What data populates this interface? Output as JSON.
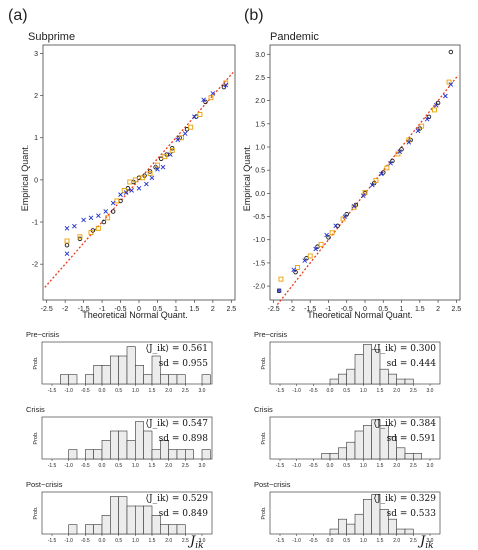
{
  "panels": [
    {
      "panel_label": "(a)",
      "title": "Subprime",
      "qq": {
        "type": "scatter",
        "xlabel": "Theoretical Normal Quant.",
        "ylabel": "Empirical Quant.",
        "xlim": [
          -2.6,
          2.6
        ],
        "ylim": [
          -2.85,
          3.2
        ],
        "xticks": [
          "-2.5",
          "-2",
          "-1.5",
          "-1",
          "-0.5",
          "0",
          "0.5",
          "1",
          "1.5",
          "2",
          "2.5"
        ],
        "yticks": [
          "-2",
          "-1",
          "0",
          "1",
          "2",
          "3"
        ],
        "reference_line": [
          [
            -2.55,
            -2.55
          ],
          [
            2.55,
            2.55
          ]
        ],
        "series": [
          {
            "marker": "circle-open",
            "color": "#1a1a1a",
            "points": [
              [
                -1.95,
                -1.55
              ],
              [
                -1.6,
                -1.4
              ],
              [
                -1.25,
                -1.2
              ],
              [
                -0.95,
                -1.0
              ],
              [
                -0.7,
                -0.75
              ],
              [
                -0.5,
                -0.5
              ],
              [
                -0.3,
                -0.2
              ],
              [
                -0.15,
                -0.05
              ],
              [
                0.0,
                0.05
              ],
              [
                0.15,
                0.1
              ],
              [
                0.3,
                0.2
              ],
              [
                0.45,
                0.3
              ],
              [
                0.6,
                0.5
              ],
              [
                0.75,
                0.6
              ],
              [
                0.9,
                0.75
              ],
              [
                1.1,
                1.0
              ],
              [
                1.3,
                1.2
              ],
              [
                1.55,
                1.5
              ],
              [
                1.8,
                1.85
              ],
              [
                2.3,
                2.2
              ]
            ]
          },
          {
            "marker": "square-open",
            "color": "#e8a000",
            "points": [
              [
                -1.95,
                -1.45
              ],
              [
                -1.6,
                -1.35
              ],
              [
                -1.3,
                -1.25
              ],
              [
                -1.1,
                -1.15
              ],
              [
                -0.85,
                -0.9
              ],
              [
                -0.6,
                -0.5
              ],
              [
                -0.4,
                -0.25
              ],
              [
                -0.25,
                -0.05
              ],
              [
                -0.1,
                0.0
              ],
              [
                0.1,
                0.05
              ],
              [
                0.3,
                0.15
              ],
              [
                0.5,
                0.35
              ],
              [
                0.7,
                0.55
              ],
              [
                0.9,
                0.7
              ],
              [
                1.15,
                1.0
              ],
              [
                1.4,
                1.25
              ],
              [
                1.65,
                1.55
              ],
              [
                1.95,
                1.95
              ],
              [
                2.35,
                2.3
              ]
            ]
          },
          {
            "marker": "cross",
            "color": "#1f2fd0",
            "points": [
              [
                -1.95,
                -1.15
              ],
              [
                -1.75,
                -1.1
              ],
              [
                -1.5,
                -0.95
              ],
              [
                -1.3,
                -0.9
              ],
              [
                -1.1,
                -0.85
              ],
              [
                -0.9,
                -0.75
              ],
              [
                -0.7,
                -0.55
              ],
              [
                -0.5,
                -0.35
              ],
              [
                -0.35,
                -0.3
              ],
              [
                -0.2,
                -0.25
              ],
              [
                0.0,
                -0.2
              ],
              [
                0.2,
                -0.1
              ],
              [
                0.35,
                0.05
              ],
              [
                0.5,
                0.25
              ],
              [
                0.65,
                0.3
              ],
              [
                0.85,
                0.6
              ],
              [
                1.05,
                0.95
              ],
              [
                1.25,
                1.1
              ],
              [
                1.5,
                1.5
              ],
              [
                1.75,
                1.9
              ],
              [
                2.0,
                2.05
              ],
              [
                2.35,
                2.25
              ],
              [
                -1.95,
                -1.75
              ]
            ]
          }
        ]
      },
      "histograms": [
        {
          "label": "Pre−crisis",
          "mean_text": "⟨J_ik⟩ = 0.561",
          "sd_text": "sd = 0.955",
          "bins_lo": -1.5,
          "bin_width": 0.25,
          "counts": [
            0,
            1,
            1,
            0,
            1,
            2,
            2,
            3,
            3,
            4,
            2,
            1,
            3,
            1,
            1,
            1,
            0,
            0,
            1
          ],
          "ylim": [
            0,
            4.5
          ]
        },
        {
          "label": "Crisis",
          "mean_text": "⟨J_ik⟩ = 0.547",
          "sd_text": "sd = 0.898",
          "bins_lo": -1.5,
          "bin_width": 0.25,
          "counts": [
            0,
            0,
            1,
            0,
            1,
            1,
            2,
            3,
            3,
            2,
            4,
            3,
            1,
            2,
            1,
            1,
            1,
            0,
            1
          ],
          "ylim": [
            0,
            4.5
          ]
        },
        {
          "label": "Post−crisis",
          "mean_text": "⟨J_ik⟩ = 0.529",
          "sd_text": "sd = 0.849",
          "bins_lo": -1.5,
          "bin_width": 0.25,
          "counts": [
            0,
            0,
            1,
            0,
            1,
            1,
            2,
            4,
            4,
            3,
            3,
            3,
            2,
            1,
            1,
            1,
            0,
            0,
            0
          ],
          "ylim": [
            0,
            4.5
          ]
        }
      ]
    },
    {
      "panel_label": "(b)",
      "title": "Pandemic",
      "qq": {
        "type": "scatter",
        "xlabel": "Theoretical Normal Quant.",
        "ylabel": "Empirical Quant.",
        "xlim": [
          -2.6,
          2.6
        ],
        "ylim": [
          -2.3,
          3.2
        ],
        "xticks": [
          "-2.5",
          "-2",
          "-1.5",
          "-1",
          "-0.5",
          "0",
          "0.5",
          "1",
          "1.5",
          "2",
          "2.5"
        ],
        "yticks": [
          "-2.0",
          "-1.5",
          "-1.0",
          "-0.5",
          "0.0",
          "0.5",
          "1.0",
          "1.5",
          "2.0",
          "2.5",
          "3.0"
        ],
        "reference_line": [
          [
            -2.4,
            -2.4
          ],
          [
            2.55,
            2.55
          ]
        ],
        "series": [
          {
            "marker": "circle-open",
            "color": "#1a1a1a",
            "points": [
              [
                -2.35,
                -2.1
              ],
              [
                -1.9,
                -1.7
              ],
              [
                -1.6,
                -1.4
              ],
              [
                -1.3,
                -1.15
              ],
              [
                -1.0,
                -0.95
              ],
              [
                -0.75,
                -0.7
              ],
              [
                -0.5,
                -0.45
              ],
              [
                -0.25,
                -0.25
              ],
              [
                0.0,
                0.0
              ],
              [
                0.25,
                0.22
              ],
              [
                0.5,
                0.45
              ],
              [
                0.75,
                0.7
              ],
              [
                1.0,
                0.95
              ],
              [
                1.25,
                1.15
              ],
              [
                1.5,
                1.4
              ],
              [
                1.75,
                1.65
              ],
              [
                2.0,
                1.95
              ],
              [
                2.35,
                3.05
              ]
            ]
          },
          {
            "marker": "square-open",
            "color": "#e8a000",
            "points": [
              [
                -2.3,
                -1.85
              ],
              [
                -1.85,
                -1.6
              ],
              [
                -1.5,
                -1.35
              ],
              [
                -1.2,
                -1.1
              ],
              [
                -0.9,
                -0.85
              ],
              [
                -0.6,
                -0.55
              ],
              [
                -0.3,
                -0.3
              ],
              [
                0.0,
                0.02
              ],
              [
                0.3,
                0.28
              ],
              [
                0.6,
                0.55
              ],
              [
                0.9,
                0.85
              ],
              [
                1.2,
                1.15
              ],
              [
                1.55,
                1.45
              ],
              [
                1.9,
                1.8
              ],
              [
                2.3,
                2.4
              ]
            ]
          },
          {
            "marker": "cross",
            "color": "#1f2fd0",
            "points": [
              [
                -2.35,
                -2.1
              ],
              [
                -1.95,
                -1.65
              ],
              [
                -1.65,
                -1.45
              ],
              [
                -1.35,
                -1.2
              ],
              [
                -1.05,
                -0.9
              ],
              [
                -0.8,
                -0.7
              ],
              [
                -0.55,
                -0.5
              ],
              [
                -0.3,
                -0.28
              ],
              [
                -0.05,
                -0.05
              ],
              [
                0.2,
                0.18
              ],
              [
                0.45,
                0.42
              ],
              [
                0.7,
                0.65
              ],
              [
                0.95,
                0.9
              ],
              [
                1.2,
                1.1
              ],
              [
                1.45,
                1.35
              ],
              [
                1.7,
                1.6
              ],
              [
                1.95,
                1.9
              ],
              [
                2.2,
                2.1
              ],
              [
                2.35,
                2.35
              ]
            ]
          }
        ]
      },
      "histograms": [
        {
          "label": "Pre−crisis",
          "mean_text": "⟨J_ik⟩ = 0.300",
          "sd_text": "sd = 0.444",
          "bins_lo": -1.5,
          "bin_width": 0.25,
          "counts": [
            0,
            0,
            0,
            0,
            0,
            0,
            1,
            2,
            3,
            6,
            8,
            7,
            3,
            2,
            1,
            1,
            0,
            0,
            0
          ],
          "ylim": [
            0,
            8.5
          ]
        },
        {
          "label": "Crisis",
          "mean_text": "⟨J_ik⟩ = 0.384",
          "sd_text": "sd = 0.591",
          "bins_lo": -1.5,
          "bin_width": 0.25,
          "counts": [
            0,
            0,
            0,
            0,
            0,
            1,
            1,
            2,
            3,
            5,
            6,
            7,
            6,
            4,
            2,
            1,
            1,
            0,
            0
          ],
          "ylim": [
            0,
            7.5
          ]
        },
        {
          "label": "Post−crisis",
          "mean_text": "⟨J_ik⟩ = 0.329",
          "sd_text": "sd = 0.533",
          "bins_lo": -1.5,
          "bin_width": 0.25,
          "counts": [
            0,
            0,
            0,
            0,
            0,
            0,
            1,
            3,
            2,
            4,
            7,
            8,
            5,
            3,
            1,
            1,
            0,
            0,
            0
          ],
          "ylim": [
            0,
            8.5
          ]
        }
      ]
    }
  ],
  "hist_xticks": [
    "-1.5",
    "-1.0",
    "-0.5",
    "0.0",
    "0.5",
    "1.0",
    "1.5",
    "2.0",
    "2.5",
    "3.0"
  ],
  "hist_ylabel": "Prob.",
  "x_symbol": "J_ik",
  "colors": {
    "circle": "#1a1a1a",
    "square": "#e8a000",
    "cross": "#1f2fd0",
    "refline": "#e83a1a",
    "bar_fill": "#ececec"
  }
}
